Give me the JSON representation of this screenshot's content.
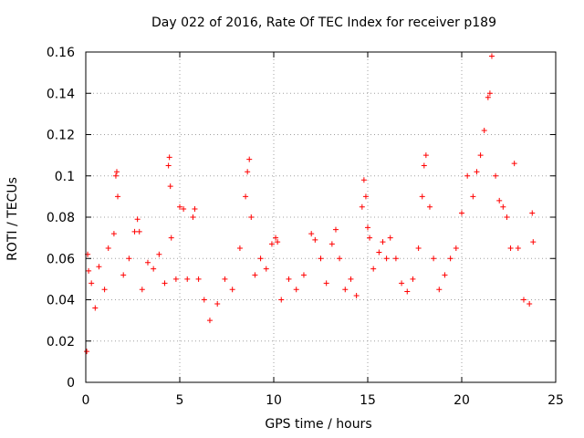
{
  "chart_data": {
    "type": "scatter",
    "title": "Day 022 of 2016, Rate Of TEC Index for receiver p189",
    "xlabel": "GPS time / hours",
    "ylabel": "ROTI / TECUs",
    "xlim": [
      0,
      25
    ],
    "ylim": [
      0,
      0.16
    ],
    "xticks": [
      0,
      5,
      10,
      15,
      20,
      25
    ],
    "yticks": [
      0,
      0.02,
      0.04,
      0.06,
      0.08,
      0.1,
      0.12,
      0.14,
      0.16
    ],
    "xtick_labels": [
      "0",
      "5",
      "10",
      "15",
      "20",
      "25"
    ],
    "ytick_labels": [
      "0",
      "0.02",
      "0.04",
      "0.06",
      "0.08",
      "0.1",
      "0.12",
      "0.14",
      "0.16"
    ],
    "grid": true,
    "marker": "+",
    "colors": {
      "series": "#ff0000",
      "grid": "#a0a0a0",
      "axis": "#000000"
    },
    "series": [
      {
        "x": [
          0.05,
          0.1,
          0.15,
          0.3,
          0.5,
          0.7,
          1.0,
          1.2,
          1.5,
          1.6,
          1.65,
          1.7,
          2.0,
          2.3,
          2.6,
          2.75,
          2.85,
          3.0,
          3.3,
          3.6,
          3.9,
          4.2,
          4.4,
          4.45,
          4.5,
          4.55,
          4.8,
          5.0,
          5.2,
          5.4,
          5.7,
          5.8,
          6.0,
          6.3,
          6.6,
          7.0,
          7.4,
          7.8,
          8.2,
          8.5,
          8.6,
          8.7,
          8.8,
          9.0,
          9.3,
          9.6,
          9.9,
          10.1,
          10.2,
          10.4,
          10.8,
          11.2,
          11.6,
          12.0,
          12.2,
          12.5,
          12.8,
          13.1,
          13.3,
          13.5,
          13.8,
          14.1,
          14.4,
          14.7,
          14.8,
          14.9,
          15.0,
          15.1,
          15.3,
          15.6,
          15.8,
          16.0,
          16.2,
          16.5,
          16.8,
          17.1,
          17.4,
          17.7,
          17.9,
          18.0,
          18.1,
          18.3,
          18.5,
          18.8,
          19.1,
          19.4,
          19.7,
          20.0,
          20.3,
          20.6,
          20.8,
          21.0,
          21.2,
          21.4,
          21.5,
          21.6,
          21.8,
          22.0,
          22.2,
          22.4,
          22.6,
          22.8,
          23.0,
          23.3,
          23.6,
          23.75,
          23.8
        ],
        "y": [
          0.015,
          0.062,
          0.054,
          0.048,
          0.036,
          0.056,
          0.045,
          0.065,
          0.072,
          0.1,
          0.102,
          0.09,
          0.052,
          0.06,
          0.073,
          0.079,
          0.073,
          0.045,
          0.058,
          0.055,
          0.062,
          0.048,
          0.105,
          0.109,
          0.095,
          0.07,
          0.05,
          0.085,
          0.084,
          0.05,
          0.08,
          0.084,
          0.05,
          0.04,
          0.03,
          0.038,
          0.05,
          0.045,
          0.065,
          0.09,
          0.102,
          0.108,
          0.08,
          0.052,
          0.06,
          0.055,
          0.067,
          0.07,
          0.068,
          0.04,
          0.05,
          0.045,
          0.052,
          0.072,
          0.069,
          0.06,
          0.048,
          0.067,
          0.074,
          0.06,
          0.045,
          0.05,
          0.042,
          0.085,
          0.098,
          0.09,
          0.075,
          0.07,
          0.055,
          0.063,
          0.068,
          0.06,
          0.07,
          0.06,
          0.048,
          0.044,
          0.05,
          0.065,
          0.09,
          0.105,
          0.11,
          0.085,
          0.06,
          0.045,
          0.052,
          0.06,
          0.065,
          0.082,
          0.1,
          0.09,
          0.102,
          0.11,
          0.122,
          0.138,
          0.14,
          0.158,
          0.1,
          0.088,
          0.085,
          0.08,
          0.065,
          0.106,
          0.065,
          0.04,
          0.038,
          0.082,
          0.068
        ]
      }
    ]
  }
}
